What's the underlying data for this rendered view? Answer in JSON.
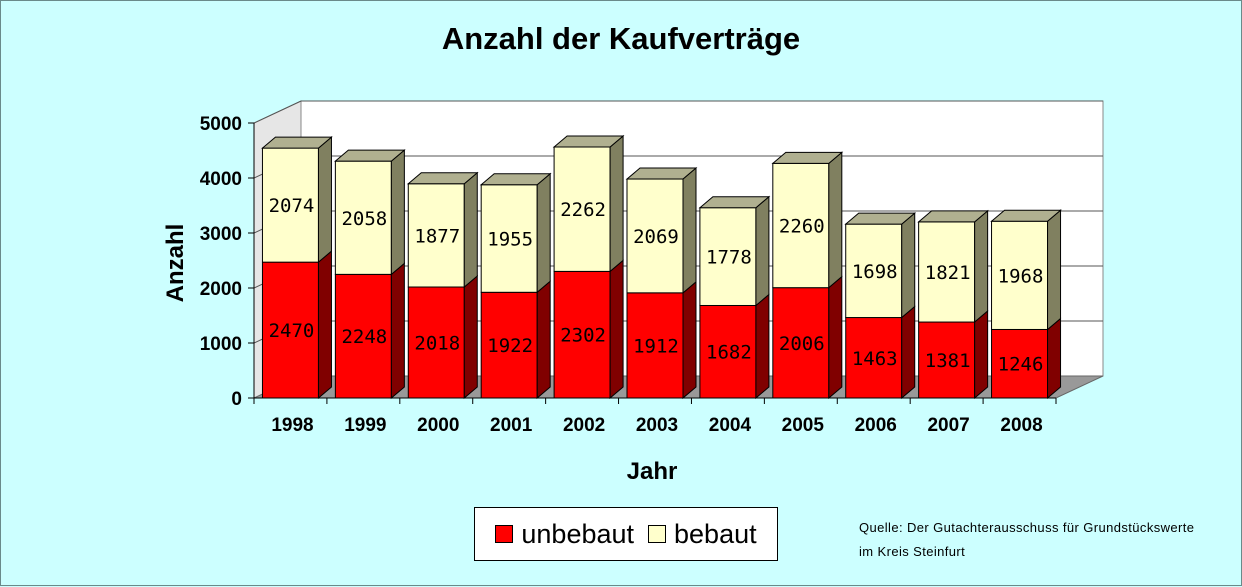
{
  "colors": {
    "background": "#ccffff",
    "unbebaut": "#ff0000",
    "unbebaut_side": "#800000",
    "bebaut": "#ffffcc",
    "bebaut_side": "#808060",
    "wall": "#ffffff",
    "floor": "#999999"
  },
  "source": {
    "line1": "Quelle: Der Gutachterausschuss für Grundstückswerte",
    "line2": "im Kreis Steinfurt"
  },
  "chart_data": {
    "type": "bar",
    "stacked": true,
    "three_d": true,
    "title": "Anzahl der Kaufverträge",
    "xlabel": "Jahr",
    "ylabel": "Anzahl",
    "categories": [
      "1998",
      "1999",
      "2000",
      "2001",
      "2002",
      "2003",
      "2004",
      "2005",
      "2006",
      "2007",
      "2008"
    ],
    "series": [
      {
        "name": "unbebaut",
        "color": "#ff0000",
        "values": [
          2470,
          2248,
          2018,
          1922,
          2302,
          1912,
          1682,
          2006,
          1463,
          1381,
          1246
        ]
      },
      {
        "name": "bebaut",
        "color": "#ffffcc",
        "values": [
          2074,
          2058,
          1877,
          1955,
          2262,
          2069,
          1778,
          2260,
          1698,
          1821,
          1968
        ]
      }
    ],
    "ylim": [
      0,
      5000
    ],
    "yticks": [
      "0",
      "1000",
      "2000",
      "3000",
      "4000",
      "5000"
    ],
    "grid": true,
    "legend": "bottom-center"
  }
}
